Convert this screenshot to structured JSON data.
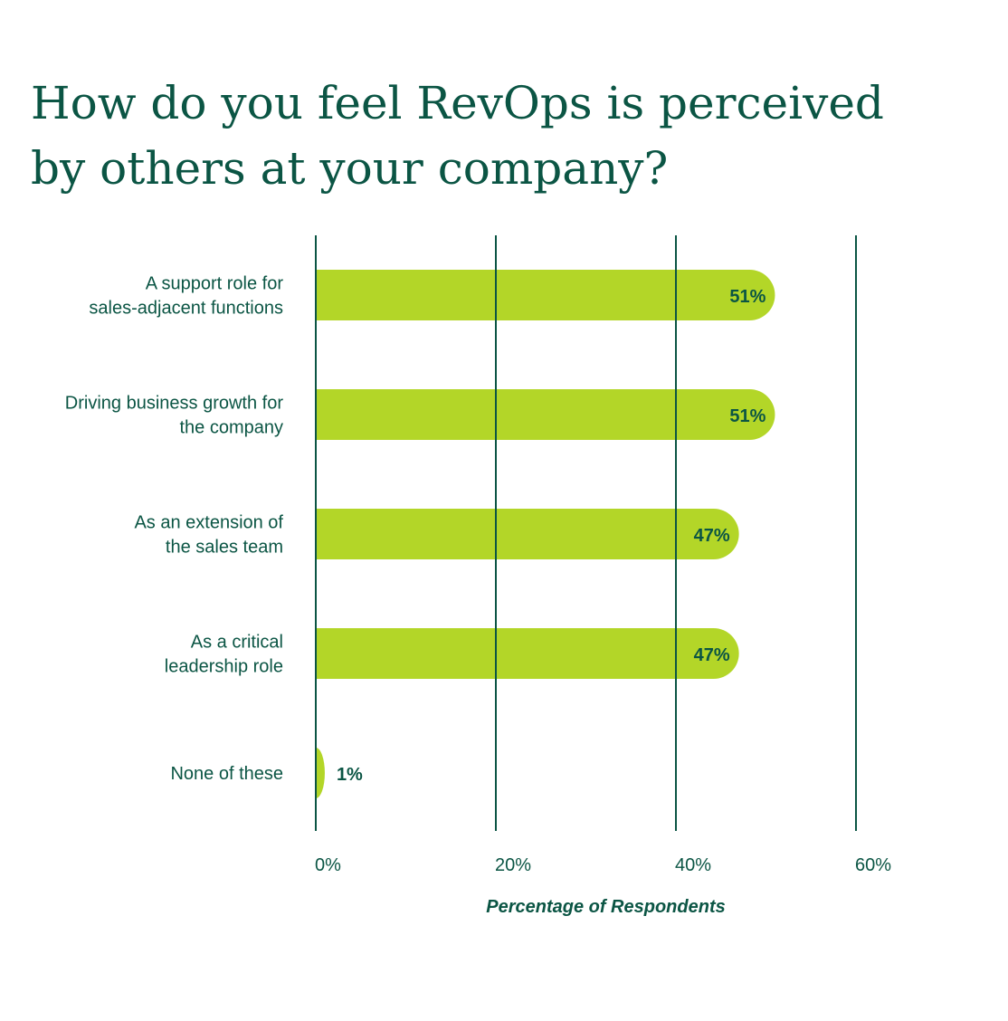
{
  "chart_data": {
    "type": "bar",
    "orientation": "horizontal",
    "title_lines": [
      "How do you feel RevOps is perceived",
      "by others at your company?"
    ],
    "categories": [
      [
        "A support role for",
        "sales-adjacent functions"
      ],
      [
        "Driving business growth for",
        "the company"
      ],
      [
        "As an extension of",
        "the sales team"
      ],
      [
        "As a critical",
        "leadership role"
      ],
      [
        "None of these"
      ]
    ],
    "values": [
      51,
      51,
      47,
      47,
      1
    ],
    "value_labels": [
      "51%",
      "51%",
      "47%",
      "47%",
      "1%"
    ],
    "xlim": [
      0,
      60
    ],
    "x_ticks": [
      0,
      20,
      40,
      60
    ],
    "x_tick_labels": [
      "0%",
      "20%",
      "40%",
      "60%"
    ],
    "xlabel": "Percentage of Respondents",
    "ylabel": "",
    "grid": true,
    "legend": "none",
    "colors": {
      "bar": "#b3d628",
      "text": "#0b5544",
      "grid": "#0b5544",
      "background": "#ffffff"
    }
  }
}
